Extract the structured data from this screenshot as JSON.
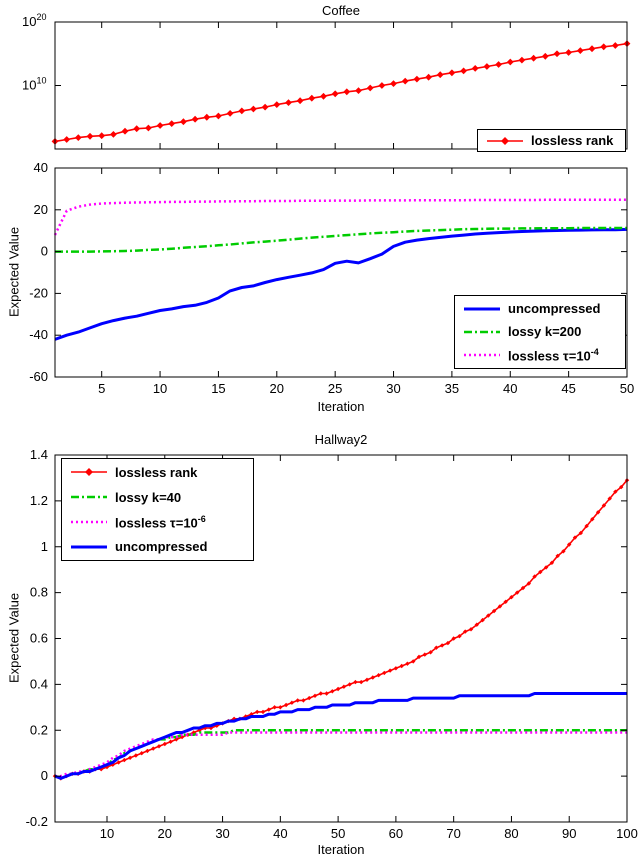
{
  "chart_data": [
    {
      "id": "coffee-rank",
      "type": "line",
      "title": "Coffee",
      "xlabel": "",
      "ylabel": "",
      "yscale": "log10",
      "grid": false,
      "legend_position": "bottom-right",
      "xlim": [
        1,
        50
      ],
      "ylim": [
        0,
        20
      ],
      "xticks": [
        {
          "v": 5
        },
        {
          "v": 10
        },
        {
          "v": 15
        },
        {
          "v": 20
        },
        {
          "v": 25
        },
        {
          "v": 30
        },
        {
          "v": 35
        },
        {
          "v": 40
        },
        {
          "v": 45
        },
        {
          "v": 50
        }
      ],
      "yticks": [
        {
          "v": 10,
          "base": "10",
          "exp": "10"
        },
        {
          "v": 20,
          "base": "10",
          "exp": "20"
        }
      ],
      "series": [
        {
          "name": "lossless rank",
          "label": "lossless rank",
          "label_sup": "",
          "color": "#ff0000",
          "width": 1.6,
          "dash": null,
          "marker": "diamond",
          "marker_size": 3.4,
          "x_start": 1,
          "x_step": 1,
          "y": [
            1.2,
            1.5,
            1.8,
            2.0,
            2.1,
            2.3,
            2.8,
            3.2,
            3.3,
            3.7,
            4.0,
            4.3,
            4.7,
            5.0,
            5.2,
            5.6,
            6.0,
            6.3,
            6.6,
            7.0,
            7.3,
            7.6,
            8.0,
            8.3,
            8.7,
            9.0,
            9.2,
            9.6,
            10.0,
            10.3,
            10.7,
            11.0,
            11.3,
            11.7,
            12.0,
            12.3,
            12.7,
            13.0,
            13.3,
            13.7,
            14.0,
            14.3,
            14.6,
            15.0,
            15.2,
            15.5,
            15.8,
            16.1,
            16.3,
            16.6
          ]
        }
      ]
    },
    {
      "id": "coffee-expected-value",
      "type": "line",
      "title": "",
      "xlabel": "Iteration",
      "ylabel": "Expected Value",
      "yscale": "linear",
      "grid": false,
      "legend_position": "bottom-right",
      "xlim": [
        1,
        50
      ],
      "ylim": [
        -60,
        40
      ],
      "xticks": [
        {
          "v": 5,
          "label": "5"
        },
        {
          "v": 10,
          "label": "10"
        },
        {
          "v": 15,
          "label": "15"
        },
        {
          "v": 20,
          "label": "20"
        },
        {
          "v": 25,
          "label": "25"
        },
        {
          "v": 30,
          "label": "30"
        },
        {
          "v": 35,
          "label": "35"
        },
        {
          "v": 40,
          "label": "40"
        },
        {
          "v": 45,
          "label": "45"
        },
        {
          "v": 50,
          "label": "50"
        }
      ],
      "yticks": [
        {
          "v": -60,
          "label": "-60"
        },
        {
          "v": -40,
          "label": "-40"
        },
        {
          "v": -20,
          "label": "-20"
        },
        {
          "v": 0,
          "label": "0"
        },
        {
          "v": 20,
          "label": "20"
        },
        {
          "v": 40,
          "label": "40"
        }
      ],
      "series": [
        {
          "name": "uncompressed",
          "label": "uncompressed",
          "label_sup": "",
          "color": "#0000ff",
          "width": 3,
          "dash": null,
          "marker": null,
          "x_start": 1,
          "x_step": 1,
          "y": [
            -42,
            -40,
            -38.5,
            -36.5,
            -34.5,
            -33,
            -31.8,
            -30.9,
            -29.5,
            -28.2,
            -27.4,
            -26.3,
            -25.7,
            -24.3,
            -22.2,
            -18.8,
            -17.2,
            -16.4,
            -14.8,
            -13.4,
            -12.3,
            -11.3,
            -10.2,
            -8.6,
            -5.6,
            -4.6,
            -5.4,
            -3.4,
            -1.2,
            2.5,
            4.5,
            5.5,
            6.2,
            6.8,
            7.4,
            7.9,
            8.4,
            8.8,
            9.1,
            9.4,
            9.6,
            9.8,
            10,
            10.1,
            10.2,
            10.3,
            10.4,
            10.5,
            10.5,
            10.6
          ]
        },
        {
          "name": "lossy k=200",
          "label": "lossy k=200",
          "label_sup": "",
          "color": "#00cc00",
          "width": 2.5,
          "dash": "dashdot",
          "marker": null,
          "x_start": 1,
          "x_step": 1,
          "y": [
            0,
            0,
            0,
            0,
            0.1,
            0.2,
            0.3,
            0.5,
            0.8,
            1,
            1.4,
            1.8,
            2.2,
            2.6,
            3,
            3.4,
            3.9,
            4.4,
            4.8,
            5.2,
            5.7,
            6.2,
            6.7,
            7.1,
            7.5,
            7.9,
            8.3,
            8.7,
            9,
            9.3,
            9.6,
            9.9,
            10.1,
            10.3,
            10.5,
            10.7,
            10.8,
            10.9,
            11,
            11,
            11.1,
            11.1,
            11.2,
            11.2,
            11.2,
            11.3,
            11.3,
            11.3,
            11.3,
            11.3
          ]
        },
        {
          "name": "lossless τ=10^-4",
          "label": "lossless τ=10",
          "label_sup": "-4",
          "color": "#ff00ff",
          "width": 2.5,
          "dash": "dot",
          "marker": null,
          "x_start": 1,
          "x_step": 1,
          "y": [
            8,
            19.5,
            21.5,
            22.5,
            23,
            23.2,
            23.4,
            23.5,
            23.6,
            23.7,
            23.8,
            23.8,
            23.9,
            23.9,
            24,
            24,
            24.1,
            24.1,
            24.2,
            24.2,
            24.2,
            24.3,
            24.3,
            24.3,
            24.4,
            24.4,
            24.4,
            24.5,
            24.5,
            24.5,
            24.5,
            24.6,
            24.6,
            24.6,
            24.6,
            24.6,
            24.7,
            24.7,
            24.7,
            24.7,
            24.7,
            24.7,
            24.8,
            24.8,
            24.8,
            24.8,
            24.8,
            24.8,
            24.8,
            24.8
          ]
        }
      ]
    },
    {
      "id": "hallway2",
      "type": "line",
      "title": "Hallway2",
      "xlabel": "Iteration",
      "ylabel": "Expected Value",
      "yscale": "linear",
      "grid": false,
      "legend_position": "top-left",
      "xlim": [
        1,
        100
      ],
      "ylim": [
        -0.2,
        1.4
      ],
      "xticks": [
        {
          "v": 10,
          "label": "10"
        },
        {
          "v": 20,
          "label": "20"
        },
        {
          "v": 30,
          "label": "30"
        },
        {
          "v": 40,
          "label": "40"
        },
        {
          "v": 50,
          "label": "50"
        },
        {
          "v": 60,
          "label": "60"
        },
        {
          "v": 70,
          "label": "70"
        },
        {
          "v": 80,
          "label": "80"
        },
        {
          "v": 90,
          "label": "90"
        },
        {
          "v": 100,
          "label": "100"
        }
      ],
      "yticks": [
        {
          "v": -0.2,
          "label": "-0.2"
        },
        {
          "v": 0,
          "label": "0"
        },
        {
          "v": 0.2,
          "label": "0.2"
        },
        {
          "v": 0.4,
          "label": "0.4"
        },
        {
          "v": 0.6,
          "label": "0.6"
        },
        {
          "v": 0.8,
          "label": "0.8"
        },
        {
          "v": 1,
          "label": "1"
        },
        {
          "v": 1.2,
          "label": "1.2"
        },
        {
          "v": 1.4,
          "label": "1.4"
        }
      ],
      "series": [
        {
          "name": "lossless rank",
          "label": "lossless rank",
          "label_sup": "",
          "color": "#ff0000",
          "width": 1.6,
          "dash": null,
          "marker": "diamond",
          "marker_size": 2.2,
          "x_start": 1,
          "x_step": 1,
          "y": [
            0,
            -0.01,
            0,
            0.01,
            0.01,
            0.02,
            0.02,
            0.03,
            0.03,
            0.04,
            0.05,
            0.06,
            0.07,
            0.08,
            0.09,
            0.1,
            0.11,
            0.12,
            0.13,
            0.14,
            0.15,
            0.16,
            0.17,
            0.18,
            0.19,
            0.2,
            0.21,
            0.21,
            0.22,
            0.23,
            0.24,
            0.25,
            0.25,
            0.26,
            0.27,
            0.28,
            0.28,
            0.29,
            0.3,
            0.3,
            0.31,
            0.32,
            0.33,
            0.33,
            0.34,
            0.35,
            0.36,
            0.36,
            0.37,
            0.38,
            0.39,
            0.4,
            0.41,
            0.41,
            0.42,
            0.43,
            0.44,
            0.45,
            0.46,
            0.47,
            0.48,
            0.49,
            0.5,
            0.52,
            0.53,
            0.54,
            0.56,
            0.57,
            0.58,
            0.6,
            0.61,
            0.63,
            0.64,
            0.66,
            0.68,
            0.7,
            0.72,
            0.74,
            0.76,
            0.78,
            0.8,
            0.82,
            0.84,
            0.87,
            0.89,
            0.91,
            0.93,
            0.96,
            0.98,
            1.01,
            1.04,
            1.06,
            1.09,
            1.12,
            1.15,
            1.18,
            1.21,
            1.24,
            1.26,
            1.29
          ]
        },
        {
          "name": "lossy k=40",
          "label": "lossy k=40",
          "label_sup": "",
          "color": "#00cc00",
          "width": 2.5,
          "dash": "dashdot",
          "marker": null,
          "x_start": 1,
          "x_step": 1,
          "y": [
            0,
            -0.01,
            0,
            0.01,
            0.01,
            0.02,
            0.03,
            0.03,
            0.04,
            0.05,
            0.07,
            0.08,
            0.1,
            0.11,
            0.12,
            0.13,
            0.14,
            0.15,
            0.16,
            0.16,
            0.17,
            0.17,
            0.18,
            0.18,
            0.18,
            0.19,
            0.19,
            0.19,
            0.19,
            0.19,
            0.19,
            0.2,
            0.2,
            0.2,
            0.2,
            0.2,
            0.2,
            0.2,
            0.2,
            0.2,
            0.2,
            0.2,
            0.2,
            0.2,
            0.2,
            0.2,
            0.2,
            0.2,
            0.2,
            0.2,
            0.2,
            0.2,
            0.2,
            0.2,
            0.2,
            0.2,
            0.2,
            0.2,
            0.2,
            0.2,
            0.2,
            0.2,
            0.2,
            0.2,
            0.2,
            0.2,
            0.2,
            0.2,
            0.2,
            0.2,
            0.2,
            0.2,
            0.2,
            0.2,
            0.2,
            0.2,
            0.2,
            0.2,
            0.2,
            0.2,
            0.2,
            0.2,
            0.2,
            0.2,
            0.2,
            0.2,
            0.2,
            0.2,
            0.2,
            0.2,
            0.2,
            0.2,
            0.2,
            0.2,
            0.2,
            0.2,
            0.2,
            0.2,
            0.2,
            0.2
          ]
        },
        {
          "name": "lossless τ=10^-6",
          "label": "lossless τ=10",
          "label_sup": "-6",
          "color": "#ff00ff",
          "width": 2.5,
          "dash": "dot",
          "marker": null,
          "x_start": 1,
          "x_step": 1,
          "y": [
            0,
            0,
            0.01,
            0.01,
            0.02,
            0.02,
            0.03,
            0.04,
            0.05,
            0.06,
            0.08,
            0.09,
            0.11,
            0.12,
            0.13,
            0.14,
            0.15,
            0.16,
            0.16,
            0.17,
            0.17,
            0.17,
            0.18,
            0.18,
            0.18,
            0.18,
            0.18,
            0.18,
            0.18,
            0.18,
            0.19,
            0.19,
            0.19,
            0.19,
            0.19,
            0.19,
            0.19,
            0.19,
            0.19,
            0.19,
            0.19,
            0.19,
            0.19,
            0.19,
            0.19,
            0.19,
            0.19,
            0.19,
            0.19,
            0.19,
            0.19,
            0.19,
            0.19,
            0.19,
            0.19,
            0.19,
            0.19,
            0.19,
            0.19,
            0.19,
            0.19,
            0.19,
            0.19,
            0.19,
            0.19,
            0.19,
            0.19,
            0.19,
            0.19,
            0.19,
            0.19,
            0.19,
            0.19,
            0.19,
            0.19,
            0.19,
            0.19,
            0.19,
            0.19,
            0.19,
            0.19,
            0.19,
            0.19,
            0.19,
            0.19,
            0.19,
            0.19,
            0.19,
            0.19,
            0.19,
            0.19,
            0.19,
            0.19,
            0.19,
            0.19,
            0.19,
            0.19,
            0.19,
            0.19,
            0.19
          ]
        },
        {
          "name": "uncompressed",
          "label": "uncompressed",
          "label_sup": "",
          "color": "#0000ff",
          "width": 3,
          "dash": null,
          "marker": null,
          "x_start": 1,
          "x_step": 1,
          "y": [
            0,
            -0.01,
            0,
            0.01,
            0.01,
            0.02,
            0.02,
            0.03,
            0.04,
            0.05,
            0.06,
            0.08,
            0.09,
            0.11,
            0.12,
            0.13,
            0.14,
            0.15,
            0.16,
            0.17,
            0.18,
            0.19,
            0.19,
            0.2,
            0.21,
            0.21,
            0.22,
            0.22,
            0.23,
            0.23,
            0.24,
            0.24,
            0.25,
            0.25,
            0.26,
            0.26,
            0.26,
            0.27,
            0.27,
            0.28,
            0.28,
            0.28,
            0.29,
            0.29,
            0.29,
            0.3,
            0.3,
            0.3,
            0.31,
            0.31,
            0.31,
            0.31,
            0.32,
            0.32,
            0.32,
            0.32,
            0.33,
            0.33,
            0.33,
            0.33,
            0.33,
            0.33,
            0.34,
            0.34,
            0.34,
            0.34,
            0.34,
            0.34,
            0.34,
            0.34,
            0.35,
            0.35,
            0.35,
            0.35,
            0.35,
            0.35,
            0.35,
            0.35,
            0.35,
            0.35,
            0.35,
            0.35,
            0.35,
            0.36,
            0.36,
            0.36,
            0.36,
            0.36,
            0.36,
            0.36,
            0.36,
            0.36,
            0.36,
            0.36,
            0.36,
            0.36,
            0.36,
            0.36,
            0.36,
            0.36
          ]
        }
      ]
    }
  ]
}
